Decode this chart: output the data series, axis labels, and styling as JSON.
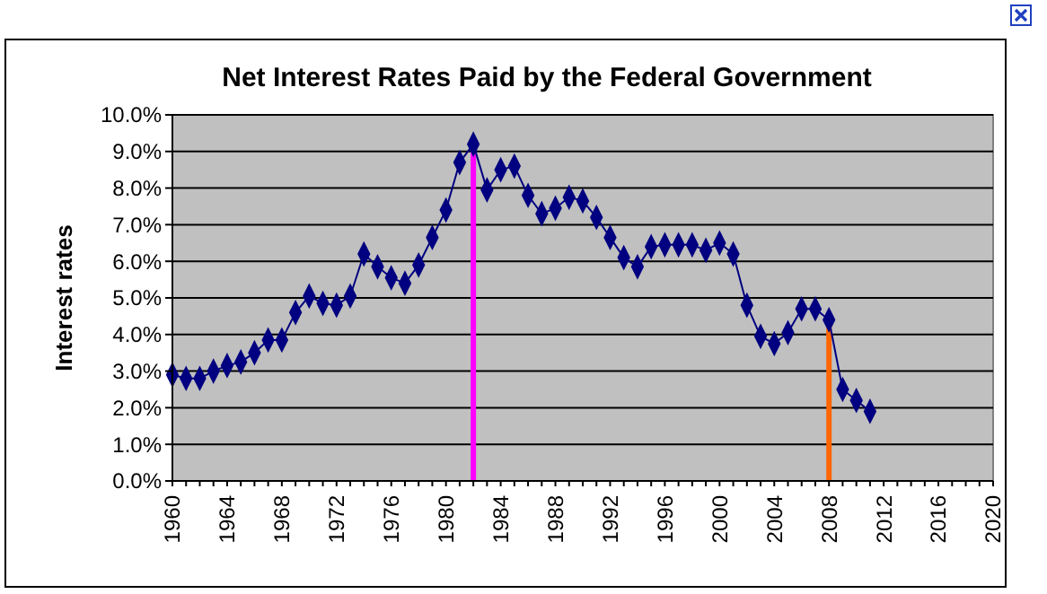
{
  "chart_data": {
    "type": "line",
    "title": "Net Interest Rates Paid by the Federal Government",
    "ylabel": "Interest rates",
    "x": [
      1960,
      1961,
      1962,
      1963,
      1964,
      1965,
      1966,
      1967,
      1968,
      1969,
      1970,
      1971,
      1972,
      1973,
      1974,
      1975,
      1976,
      1977,
      1978,
      1979,
      1980,
      1981,
      1982,
      1983,
      1984,
      1985,
      1986,
      1987,
      1988,
      1989,
      1990,
      1991,
      1992,
      1993,
      1994,
      1995,
      1996,
      1997,
      1998,
      1999,
      2000,
      2001,
      2002,
      2003,
      2004,
      2005,
      2006,
      2007,
      2008,
      2009,
      2010,
      2011
    ],
    "series": [
      {
        "color": "#000080",
        "values": [
          2.9,
          2.8,
          2.8,
          3.0,
          3.15,
          3.25,
          3.5,
          3.85,
          3.85,
          4.6,
          5.05,
          4.85,
          4.8,
          5.05,
          6.2,
          5.85,
          5.55,
          5.4,
          5.9,
          6.65,
          7.4,
          8.7,
          9.2,
          7.95,
          8.5,
          8.6,
          7.8,
          7.3,
          7.45,
          7.75,
          7.65,
          7.2,
          6.65,
          6.1,
          5.85,
          6.4,
          6.45,
          6.45,
          6.45,
          6.3,
          6.5,
          6.2,
          4.8,
          3.95,
          3.75,
          4.05,
          4.7,
          4.7,
          4.4,
          2.5,
          2.2,
          1.9
        ]
      }
    ],
    "marker": "diamond",
    "line_style": "solid",
    "xlim": [
      1960,
      2020
    ],
    "xticks": [
      1960,
      1964,
      1968,
      1972,
      1976,
      1980,
      1984,
      1988,
      1992,
      1996,
      2000,
      2004,
      2008,
      2012,
      2016,
      2020
    ],
    "ylim": [
      0,
      10
    ],
    "yticks": [
      {
        "value": 0,
        "label": "0.0%"
      },
      {
        "value": 1,
        "label": "1.0%"
      },
      {
        "value": 2,
        "label": "2.0%"
      },
      {
        "value": 3,
        "label": "3.0%"
      },
      {
        "value": 4,
        "label": "4.0%"
      },
      {
        "value": 5,
        "label": "5.0%"
      },
      {
        "value": 6,
        "label": "6.0%"
      },
      {
        "value": 7,
        "label": "7.0%"
      },
      {
        "value": 8,
        "label": "8.0%"
      },
      {
        "value": 9,
        "label": "9.0%"
      },
      {
        "value": 10,
        "label": "10.0%"
      }
    ],
    "grid": "y",
    "ref_lines": [
      {
        "axis": "x",
        "value": 1982,
        "color": "#ff00ff"
      },
      {
        "axis": "x",
        "value": 2008,
        "color": "#ff6600"
      }
    ]
  }
}
